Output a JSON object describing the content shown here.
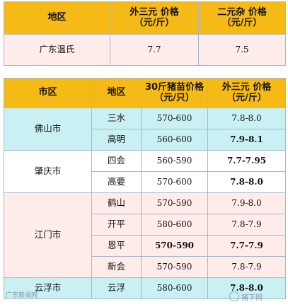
{
  "table1": {
    "headers": [
      "地区",
      "外三元 价格\n（元/斤）",
      "二元杂 价格\n（元/斤）"
    ],
    "row": {
      "region": "广东温氏",
      "price_a": "7.7",
      "price_b": "7.5"
    }
  },
  "table2": {
    "headers": [
      "市区",
      "地区",
      "30斤猪苗价格\n（元/只）",
      "外三元 价格\n（元/斤）"
    ],
    "rows": [
      {
        "city": "佛山市",
        "area": "三水",
        "piglet": "570-600",
        "price": "7.8-8.0"
      },
      {
        "area": "高明",
        "piglet": "560-600",
        "price": "7.9-8.1"
      },
      {
        "city": "肇庆市",
        "area": "四会",
        "piglet": "560-590",
        "price": "7.7-7.95"
      },
      {
        "area": "高要",
        "piglet": "570-600",
        "price": "7.8-8.0"
      },
      {
        "city": "江门市",
        "area": "鹤山",
        "piglet": "570-590",
        "price": "7.9-8.0"
      },
      {
        "area": "开平",
        "piglet": "580-600",
        "price": "7.8-7.9"
      },
      {
        "area": "恩平",
        "piglet": "570-590",
        "price": "7.7-7.9"
      },
      {
        "area": "新会",
        "piglet": "570-590",
        "price": "7.8-7.9"
      },
      {
        "city": "云浮市",
        "area": "云浮",
        "piglet": "580-600",
        "price": "7.8-8.0"
      }
    ]
  },
  "watermarks": {
    "left": "广东新闻网",
    "right": "猪下网"
  }
}
